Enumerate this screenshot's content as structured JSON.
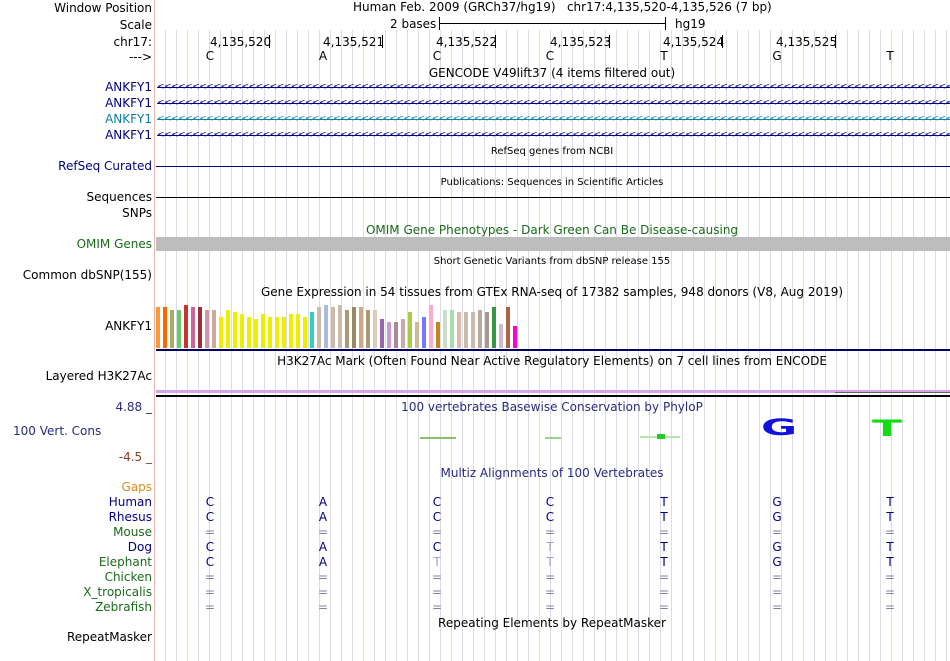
{
  "header": {
    "window_position_label": "Window Position",
    "window_position_text": "Human Feb. 2009 (GRCh37/hg19)   chr17:4,135,520-4,135,526 (7 bp)",
    "scale_label": "Scale",
    "scale_text": "2 bases",
    "assembly": "hg19",
    "chrom_label": "chr17:",
    "strand_label": "--->",
    "positions": [
      "4,135,520",
      "4,135,521",
      "4,135,522",
      "4,135,523",
      "4,135,524",
      "4,135,525"
    ],
    "bases": [
      "C",
      "A",
      "C",
      "C",
      "T",
      "G",
      "T"
    ]
  },
  "gencode": {
    "title": "GENCODE V49lift37 (4 items filtered out)",
    "genes": [
      {
        "name": "ANKFY1",
        "color": "#000080"
      },
      {
        "name": "ANKFY1",
        "color": "#000080"
      },
      {
        "name": "ANKFY1",
        "color": "#0a7fa8"
      },
      {
        "name": "ANKFY1",
        "color": "#000080"
      }
    ],
    "arrow_glyph": "<"
  },
  "refseq": {
    "title": "RefSeq genes from NCBI",
    "label": "RefSeq Curated"
  },
  "publications": {
    "title": "Publications: Sequences in Scientific Articles",
    "label": "Sequences",
    "snps_label": "SNPs"
  },
  "omim": {
    "title": "OMIM Gene Phenotypes - Dark Green Can Be Disease-causing",
    "label": "OMIM Genes"
  },
  "dbsnp": {
    "title": "Short Genetic Variants from dbSNP release 155",
    "label": "Common dbSNP(155)"
  },
  "gtex": {
    "title": "Gene Expression in 54 tissues from GTEx RNA-seq of 17382 samples, 948 donors (V8, Aug 2019)",
    "label": "ANKFY1",
    "bars": [
      {
        "value": 0.85,
        "color": "#ff9933"
      },
      {
        "value": 0.85,
        "color": "#ff6600"
      },
      {
        "value": 0.8,
        "color": "#aaaa66"
      },
      {
        "value": 0.8,
        "color": "#66cc66"
      },
      {
        "value": 0.9,
        "color": "#cc3333"
      },
      {
        "value": 0.85,
        "color": "#cc6699"
      },
      {
        "value": 0.85,
        "color": "#993333"
      },
      {
        "value": 0.8,
        "color": "#cc99aa"
      },
      {
        "value": 0.8,
        "color": "#ccaa99"
      },
      {
        "value": 0.65,
        "color": "#eeee00"
      },
      {
        "value": 0.8,
        "color": "#eeee00"
      },
      {
        "value": 0.75,
        "color": "#eeee00"
      },
      {
        "value": 0.7,
        "color": "#eeee00"
      },
      {
        "value": 0.65,
        "color": "#eeee00"
      },
      {
        "value": 0.6,
        "color": "#eeee00"
      },
      {
        "value": 0.7,
        "color": "#eeee00"
      },
      {
        "value": 0.65,
        "color": "#eeee00"
      },
      {
        "value": 0.65,
        "color": "#eeee00"
      },
      {
        "value": 0.65,
        "color": "#eeee00"
      },
      {
        "value": 0.7,
        "color": "#eeee00"
      },
      {
        "value": 0.7,
        "color": "#eeee00"
      },
      {
        "value": 0.65,
        "color": "#eeee00"
      },
      {
        "value": 0.75,
        "color": "#33cccc"
      },
      {
        "value": 0.85,
        "color": "#ccbbaa"
      },
      {
        "value": 0.9,
        "color": "#aabbdd"
      },
      {
        "value": 0.85,
        "color": "#ccbbaa"
      },
      {
        "value": 0.9,
        "color": "#ccbbaa"
      },
      {
        "value": 0.8,
        "color": "#aa9977"
      },
      {
        "value": 0.85,
        "color": "#998866"
      },
      {
        "value": 0.85,
        "color": "#ccaa88"
      },
      {
        "value": 0.8,
        "color": "#aa9977"
      },
      {
        "value": 0.8,
        "color": "#ddccbb"
      },
      {
        "value": 0.6,
        "color": "#9966aa"
      },
      {
        "value": 0.55,
        "color": "#cc99cc"
      },
      {
        "value": 0.55,
        "color": "#aa8899"
      },
      {
        "value": 0.6,
        "color": "#ccaaaa"
      },
      {
        "value": 0.75,
        "color": "#aacc44"
      },
      {
        "value": 0.55,
        "color": "#ccbb99"
      },
      {
        "value": 0.65,
        "color": "#7777ff"
      },
      {
        "value": 0.9,
        "color": "#ffaacc"
      },
      {
        "value": 0.55,
        "color": "#bb8822"
      },
      {
        "value": 0.8,
        "color": "#ccddcc"
      },
      {
        "value": 0.8,
        "color": "#aaddaa"
      },
      {
        "value": 0.75,
        "color": "#ddbbaa"
      },
      {
        "value": 0.75,
        "color": "#ccbbaa"
      },
      {
        "value": 0.75,
        "color": "#ccbbaa"
      },
      {
        "value": 0.8,
        "color": "#bbaa99"
      },
      {
        "value": 0.75,
        "color": "#aa9988"
      },
      {
        "value": 0.85,
        "color": "#339944"
      },
      {
        "value": 0.5,
        "color": "#ccbbcc"
      },
      {
        "value": 0.85,
        "color": "#aa6644"
      },
      {
        "value": 0.45,
        "color": "#ff00cc"
      }
    ]
  },
  "h3k27ac": {
    "title": "H3K27Ac Mark (Often Found Near Active Regulatory Elements) on 7 cell lines from ENCODE",
    "label": "Layered H3K27Ac"
  },
  "conservation": {
    "title": "100 vertebrates Basewise Conservation by PhyloP",
    "label": "100 Vert. Cons",
    "y_max": "4.88 _",
    "y_min": "-4.5 _",
    "logo_letters": [
      "G",
      "T"
    ]
  },
  "multiz": {
    "title": "Multiz Alignments of 100 Vertebrates",
    "gaps_label": "Gaps",
    "species": [
      {
        "name": "Human",
        "color": "#000080",
        "bases": [
          "C",
          "A",
          "C",
          "C",
          "T",
          "G",
          "T"
        ]
      },
      {
        "name": "Rhesus",
        "color": "#000080",
        "bases": [
          "C",
          "A",
          "C",
          "C",
          "T",
          "G",
          "T"
        ]
      },
      {
        "name": "Mouse",
        "color": "#1a6b1a",
        "bases": [
          "=",
          "=",
          "=",
          "=",
          "=",
          "=",
          "="
        ]
      },
      {
        "name": "Dog",
        "color": "#000080",
        "bases": [
          "C",
          "A",
          "C",
          "T",
          "T",
          "G",
          "T"
        ]
      },
      {
        "name": "Elephant",
        "color": "#1a6b1a",
        "bases": [
          "C",
          "A",
          "T",
          "T",
          "T",
          "G",
          "T"
        ]
      },
      {
        "name": "Chicken",
        "color": "#1a6b1a",
        "bases": [
          "=",
          "=",
          "=",
          "=",
          "=",
          "=",
          "="
        ]
      },
      {
        "name": "X_tropicalis",
        "color": "#1a6b1a",
        "bases": [
          "=",
          "=",
          "=",
          "=",
          "=",
          "=",
          "="
        ]
      },
      {
        "name": "Zebrafish",
        "color": "#1a6b1a",
        "bases": [
          "=",
          "=",
          "=",
          "=",
          "=",
          "=",
          "="
        ]
      }
    ]
  },
  "repeatmasker": {
    "title": "Repeating Elements by RepeatMasker",
    "label": "RepeatMasker"
  }
}
